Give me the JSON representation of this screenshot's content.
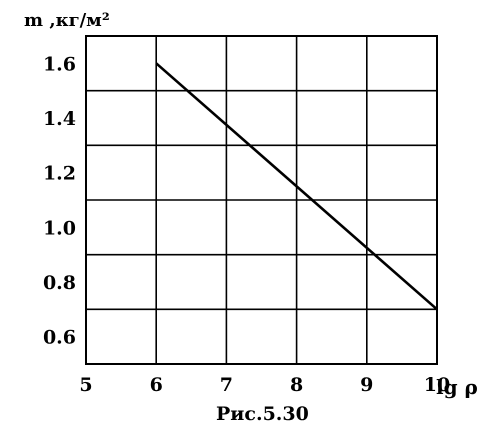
{
  "chart_data": {
    "type": "line",
    "title": "",
    "ylabel": "m ,кг/м²",
    "xlabel": "lg ρ",
    "caption": "Рис.5.30",
    "xlim": [
      5,
      10
    ],
    "ylim": [
      0.5,
      1.7
    ],
    "xticks": [
      {
        "value": 5,
        "label": "5"
      },
      {
        "value": 6,
        "label": "6"
      },
      {
        "value": 7,
        "label": "7"
      },
      {
        "value": 8,
        "label": "8"
      },
      {
        "value": 9,
        "label": "9"
      },
      {
        "value": 10,
        "label": "10"
      }
    ],
    "yticks": [
      {
        "value": 0.6,
        "label": "0.6"
      },
      {
        "value": 0.8,
        "label": "0.8"
      },
      {
        "value": 1.0,
        "label": "1.0"
      },
      {
        "value": 1.2,
        "label": "1.2"
      },
      {
        "value": 1.4,
        "label": "1.4"
      },
      {
        "value": 1.6,
        "label": "1.6"
      }
    ],
    "grid": true,
    "series": [
      {
        "x": [
          6.0,
          10.0
        ],
        "y": [
          1.6,
          0.7
        ]
      }
    ]
  }
}
